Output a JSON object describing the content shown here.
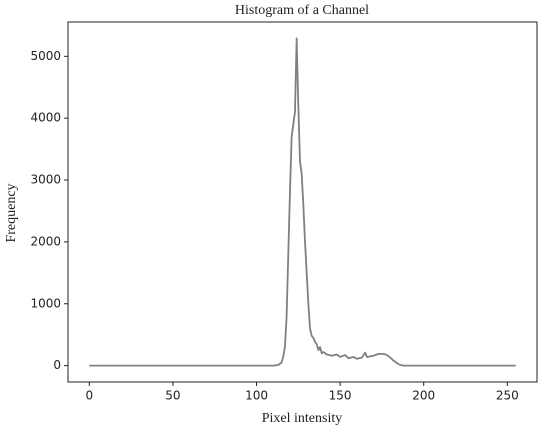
{
  "chart_data": {
    "type": "line",
    "title": "Histogram of a Channel",
    "x_label": "Pixel intensity",
    "y_label": "Frequency",
    "x": [
      0,
      110,
      113,
      115,
      116,
      117,
      118,
      119,
      120,
      121,
      122,
      123,
      124,
      125,
      126,
      127,
      128,
      129,
      130,
      131,
      132,
      133,
      134,
      135,
      136,
      137,
      138,
      139,
      140,
      142,
      145,
      148,
      150,
      153,
      155,
      158,
      160,
      163,
      165,
      166,
      168,
      170,
      173,
      176,
      178,
      180,
      182,
      184,
      186,
      188,
      255
    ],
    "series": [
      {
        "name": "Frequency",
        "color": "#808080",
        "values": [
          0,
          0,
          10,
          50,
          150,
          300,
          800,
          1800,
          2800,
          3700,
          3900,
          4100,
          5290,
          4200,
          3300,
          3100,
          2600,
          2000,
          1500,
          1000,
          600,
          480,
          450,
          380,
          350,
          250,
          300,
          200,
          220,
          180,
          160,
          180,
          140,
          170,
          120,
          140,
          110,
          130,
          210,
          140,
          150,
          160,
          190,
          190,
          170,
          130,
          80,
          40,
          10,
          0,
          0
        ]
      }
    ],
    "xlim": [
      -12.75,
      267.75
    ],
    "ylim": [
      -265,
      5555
    ],
    "xticks": [
      0,
      50,
      100,
      150,
      200,
      250
    ],
    "yticks": [
      0,
      1000,
      2000,
      3000,
      4000,
      5000
    ]
  }
}
